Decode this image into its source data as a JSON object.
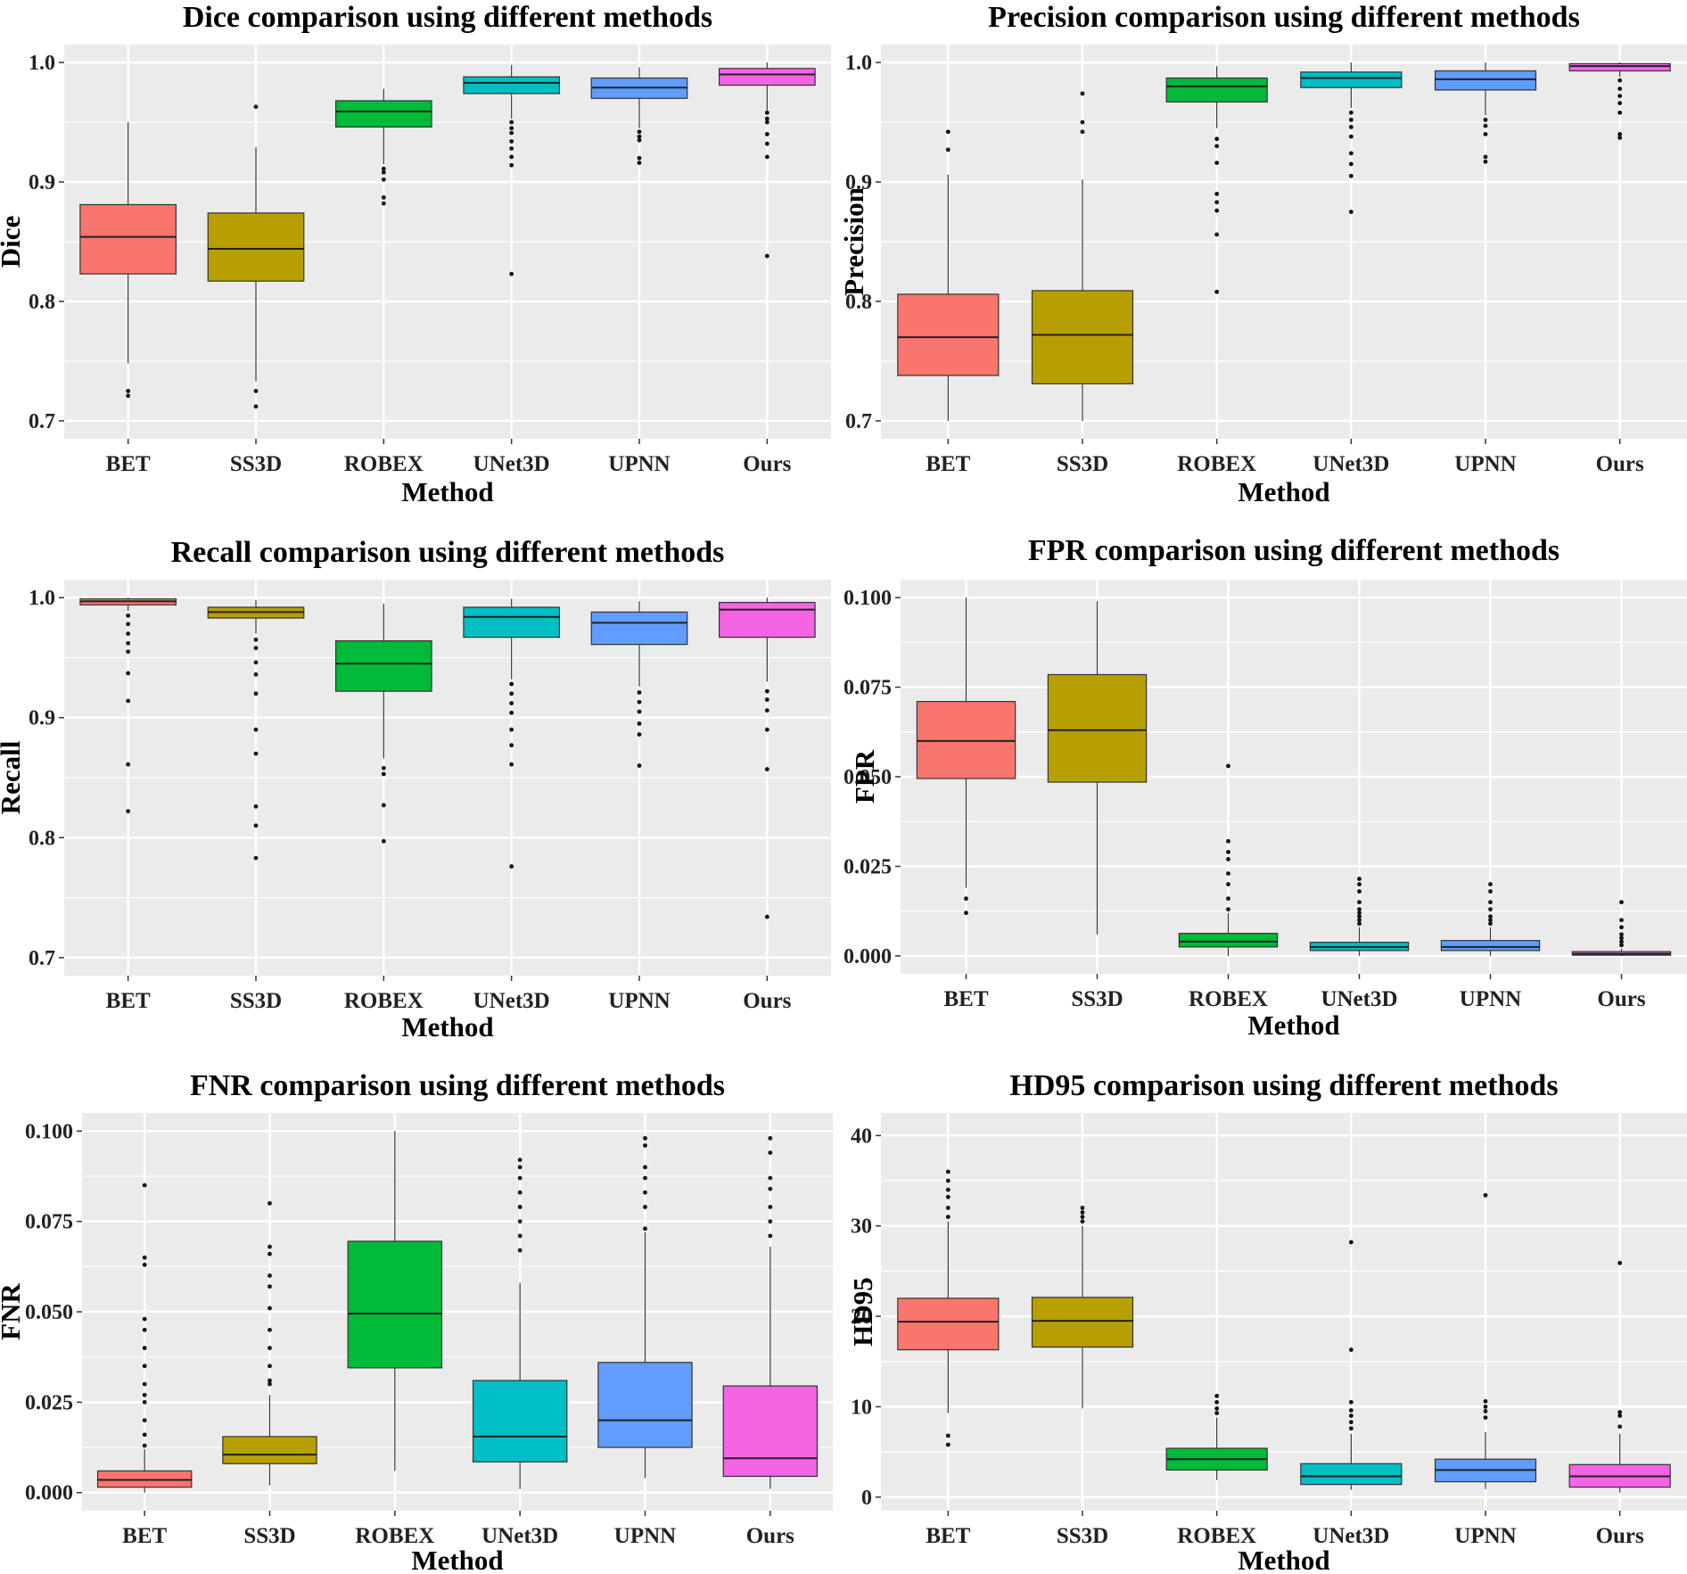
{
  "figure": {
    "methods": [
      "BET",
      "SS3D",
      "ROBEX",
      "UNet3D",
      "UPNN",
      "Ours"
    ],
    "colors": [
      "#F8766D",
      "#B79F00",
      "#00BA38",
      "#00BFC4",
      "#619CFF",
      "#F564E3"
    ],
    "panel_background": "#EBEBEB",
    "grid_color": "#FFFFFF"
  },
  "chart_data": [
    {
      "type": "box",
      "title": "Dice comparison using different methods",
      "xlabel": "Method",
      "ylabel": "Dice",
      "ylim": [
        0.685,
        1.015
      ],
      "yticks": [
        0.7,
        0.8,
        0.9,
        1.0
      ],
      "ytick_labels": [
        "0.7",
        "0.8",
        "0.9",
        "1.0"
      ],
      "categories": [
        "BET",
        "SS3D",
        "ROBEX",
        "UNet3D",
        "UPNN",
        "Ours"
      ],
      "boxes": [
        {
          "q1": 0.823,
          "median": 0.854,
          "q3": 0.881,
          "lo": 0.748,
          "hi": 0.95,
          "outliers": [
            0.725,
            0.721
          ]
        },
        {
          "q1": 0.817,
          "median": 0.844,
          "q3": 0.874,
          "lo": 0.733,
          "hi": 0.929,
          "outliers": [
            0.963,
            0.725,
            0.712
          ]
        },
        {
          "q1": 0.946,
          "median": 0.959,
          "q3": 0.968,
          "lo": 0.915,
          "hi": 0.978,
          "outliers": [
            0.911,
            0.908,
            0.902,
            0.887,
            0.882
          ]
        },
        {
          "q1": 0.974,
          "median": 0.983,
          "q3": 0.988,
          "lo": 0.953,
          "hi": 0.998,
          "outliers": [
            0.95,
            0.945,
            0.941,
            0.934,
            0.928,
            0.921,
            0.914,
            0.823
          ]
        },
        {
          "q1": 0.97,
          "median": 0.979,
          "q3": 0.987,
          "lo": 0.945,
          "hi": 0.996,
          "outliers": [
            0.942,
            0.938,
            0.935,
            0.92,
            0.916
          ]
        },
        {
          "q1": 0.981,
          "median": 0.99,
          "q3": 0.995,
          "lo": 0.96,
          "hi": 1.0,
          "outliers": [
            0.958,
            0.953,
            0.95,
            0.94,
            0.932,
            0.921,
            0.838
          ]
        }
      ]
    },
    {
      "type": "box",
      "title": "Precision comparison using different methods",
      "xlabel": "Method",
      "ylabel": "Precision",
      "ylim": [
        0.685,
        1.015
      ],
      "yticks": [
        0.7,
        0.8,
        0.9,
        1.0
      ],
      "ytick_labels": [
        "0.7",
        "0.8",
        "0.9",
        "1.0"
      ],
      "categories": [
        "BET",
        "SS3D",
        "ROBEX",
        "UNet3D",
        "UPNN",
        "Ours"
      ],
      "boxes": [
        {
          "q1": 0.738,
          "median": 0.77,
          "q3": 0.806,
          "lo": 0.7,
          "hi": 0.906,
          "outliers": [
            0.942,
            0.927
          ]
        },
        {
          "q1": 0.731,
          "median": 0.772,
          "q3": 0.809,
          "lo": 0.7,
          "hi": 0.902,
          "outliers": [
            0.974,
            0.95,
            0.942
          ]
        },
        {
          "q1": 0.967,
          "median": 0.98,
          "q3": 0.987,
          "lo": 0.945,
          "hi": 0.997,
          "outliers": [
            0.936,
            0.93,
            0.916,
            0.89,
            0.883,
            0.876,
            0.856,
            0.808
          ]
        },
        {
          "q1": 0.979,
          "median": 0.987,
          "q3": 0.992,
          "lo": 0.962,
          "hi": 1.0,
          "outliers": [
            0.958,
            0.952,
            0.946,
            0.938,
            0.924,
            0.915,
            0.905,
            0.875
          ]
        },
        {
          "q1": 0.977,
          "median": 0.986,
          "q3": 0.993,
          "lo": 0.956,
          "hi": 1.0,
          "outliers": [
            0.952,
            0.947,
            0.94,
            0.921,
            0.917
          ]
        },
        {
          "q1": 0.993,
          "median": 0.997,
          "q3": 0.999,
          "lo": 0.988,
          "hi": 1.0,
          "outliers": [
            0.985,
            0.978,
            0.972,
            0.966,
            0.958,
            0.94,
            0.937
          ]
        }
      ]
    },
    {
      "type": "box",
      "title": "Recall comparison using different methods",
      "xlabel": "Method",
      "ylabel": "Recall",
      "ylim": [
        0.685,
        1.015
      ],
      "yticks": [
        0.7,
        0.8,
        0.9,
        1.0
      ],
      "ytick_labels": [
        "0.7",
        "0.8",
        "0.9",
        "1.0"
      ],
      "categories": [
        "BET",
        "SS3D",
        "ROBEX",
        "UNet3D",
        "UPNN",
        "Ours"
      ],
      "boxes": [
        {
          "q1": 0.994,
          "median": 0.997,
          "q3": 0.999,
          "lo": 0.989,
          "hi": 1.0,
          "outliers": [
            0.985,
            0.978,
            0.97,
            0.962,
            0.955,
            0.937,
            0.914,
            0.861,
            0.822
          ]
        },
        {
          "q1": 0.983,
          "median": 0.988,
          "q3": 0.992,
          "lo": 0.97,
          "hi": 0.998,
          "outliers": [
            0.965,
            0.958,
            0.946,
            0.936,
            0.92,
            0.89,
            0.87,
            0.826,
            0.81,
            0.783
          ]
        },
        {
          "q1": 0.922,
          "median": 0.945,
          "q3": 0.964,
          "lo": 0.866,
          "hi": 0.995,
          "outliers": [
            0.858,
            0.853,
            0.827,
            0.797
          ]
        },
        {
          "q1": 0.967,
          "median": 0.984,
          "q3": 0.992,
          "lo": 0.932,
          "hi": 0.999,
          "outliers": [
            0.928,
            0.92,
            0.912,
            0.904,
            0.89,
            0.877,
            0.861,
            0.776
          ]
        },
        {
          "q1": 0.961,
          "median": 0.979,
          "q3": 0.988,
          "lo": 0.926,
          "hi": 0.997,
          "outliers": [
            0.921,
            0.913,
            0.905,
            0.895,
            0.886,
            0.86
          ]
        },
        {
          "q1": 0.967,
          "median": 0.99,
          "q3": 0.996,
          "lo": 0.93,
          "hi": 1.0,
          "outliers": [
            0.922,
            0.915,
            0.906,
            0.89,
            0.857,
            0.734
          ]
        }
      ]
    },
    {
      "type": "box",
      "title": "FPR comparison using different methods",
      "xlabel": "Method",
      "ylabel": "FPR",
      "ylim": [
        -0.005,
        0.105
      ],
      "yticks": [
        0.0,
        0.025,
        0.05,
        0.075,
        0.1
      ],
      "ytick_labels": [
        "0.000",
        "0.025",
        "0.050",
        "0.075",
        "0.100"
      ],
      "categories": [
        "BET",
        "SS3D",
        "ROBEX",
        "UNet3D",
        "UPNN",
        "Ours"
      ],
      "boxes": [
        {
          "q1": 0.0495,
          "median": 0.06,
          "q3": 0.071,
          "lo": 0.019,
          "hi": 0.1,
          "outliers": [
            0.016,
            0.012
          ]
        },
        {
          "q1": 0.0485,
          "median": 0.063,
          "q3": 0.0785,
          "lo": 0.006,
          "hi": 0.099,
          "outliers": []
        },
        {
          "q1": 0.0025,
          "median": 0.004,
          "q3": 0.0063,
          "lo": 0.0,
          "hi": 0.012,
          "outliers": [
            0.053,
            0.032,
            0.029,
            0.027,
            0.023,
            0.02,
            0.016,
            0.013
          ]
        },
        {
          "q1": 0.0015,
          "median": 0.0025,
          "q3": 0.0038,
          "lo": 0.0,
          "hi": 0.008,
          "outliers": [
            0.0215,
            0.02,
            0.018,
            0.015,
            0.013,
            0.012,
            0.011,
            0.01,
            0.009
          ]
        },
        {
          "q1": 0.0015,
          "median": 0.0025,
          "q3": 0.0043,
          "lo": 0.0,
          "hi": 0.008,
          "outliers": [
            0.02,
            0.018,
            0.015,
            0.013,
            0.011,
            0.01,
            0.009
          ]
        },
        {
          "q1": 0.0002,
          "median": 0.0006,
          "q3": 0.0012,
          "lo": 0.0,
          "hi": 0.002,
          "outliers": [
            0.015,
            0.01,
            0.008,
            0.006,
            0.005,
            0.004,
            0.003
          ]
        }
      ]
    },
    {
      "type": "box",
      "title": "FNR comparison using different methods",
      "xlabel": "Method",
      "ylabel": "FNR",
      "ylim": [
        -0.005,
        0.105
      ],
      "yticks": [
        0.0,
        0.025,
        0.05,
        0.075,
        0.1
      ],
      "ytick_labels": [
        "0.000",
        "0.025",
        "0.050",
        "0.075",
        "0.100"
      ],
      "categories": [
        "BET",
        "SS3D",
        "ROBEX",
        "UNet3D",
        "UPNN",
        "Ours"
      ],
      "boxes": [
        {
          "q1": 0.0015,
          "median": 0.0035,
          "q3": 0.006,
          "lo": 0.0,
          "hi": 0.012,
          "outliers": [
            0.085,
            0.065,
            0.063,
            0.048,
            0.045,
            0.04,
            0.035,
            0.03,
            0.027,
            0.025,
            0.02,
            0.016,
            0.013
          ]
        },
        {
          "q1": 0.008,
          "median": 0.0105,
          "q3": 0.0155,
          "lo": 0.002,
          "hi": 0.027,
          "outliers": [
            0.08,
            0.068,
            0.066,
            0.06,
            0.057,
            0.051,
            0.045,
            0.04,
            0.035,
            0.031,
            0.03
          ]
        },
        {
          "q1": 0.0345,
          "median": 0.0495,
          "q3": 0.0695,
          "lo": 0.006,
          "hi": 0.1,
          "outliers": []
        },
        {
          "q1": 0.0085,
          "median": 0.0155,
          "q3": 0.031,
          "lo": 0.001,
          "hi": 0.058,
          "outliers": [
            0.092,
            0.09,
            0.087,
            0.083,
            0.079,
            0.075,
            0.071,
            0.067
          ]
        },
        {
          "q1": 0.0125,
          "median": 0.02,
          "q3": 0.036,
          "lo": 0.004,
          "hi": 0.072,
          "outliers": [
            0.098,
            0.096,
            0.09,
            0.087,
            0.083,
            0.079,
            0.073
          ]
        },
        {
          "q1": 0.0045,
          "median": 0.0095,
          "q3": 0.0295,
          "lo": 0.001,
          "hi": 0.068,
          "outliers": [
            0.098,
            0.094,
            0.087,
            0.084,
            0.079,
            0.075,
            0.071
          ]
        }
      ]
    },
    {
      "type": "box",
      "title": "HD95 comparison using different methods",
      "xlabel": "Method",
      "ylabel": "HD95",
      "ylim": [
        -1.5,
        42.5
      ],
      "yticks": [
        0,
        10,
        20,
        30,
        40
      ],
      "ytick_labels": [
        "0",
        "10",
        "20",
        "30",
        "40"
      ],
      "categories": [
        "BET",
        "SS3D",
        "ROBEX",
        "UNet3D",
        "UPNN",
        "Ours"
      ],
      "boxes": [
        {
          "q1": 16.3,
          "median": 19.4,
          "q3": 22.0,
          "lo": 9.3,
          "hi": 30.5,
          "outliers": [
            36.0,
            35.0,
            34.0,
            33.2,
            32.0,
            31.0,
            6.8,
            5.8
          ]
        },
        {
          "q1": 16.6,
          "median": 19.5,
          "q3": 22.1,
          "lo": 9.8,
          "hi": 30.0,
          "outliers": [
            32.0,
            31.5,
            31.0,
            30.5
          ]
        },
        {
          "q1": 3.0,
          "median": 4.2,
          "q3": 5.4,
          "lo": 1.9,
          "hi": 8.8,
          "outliers": [
            11.2,
            10.5,
            9.8,
            9.3
          ]
        },
        {
          "q1": 1.4,
          "median": 2.3,
          "q3": 3.7,
          "lo": 0.8,
          "hi": 7.0,
          "outliers": [
            28.2,
            16.3,
            10.5,
            9.6,
            9.0,
            8.3,
            7.6
          ]
        },
        {
          "q1": 1.7,
          "median": 3.0,
          "q3": 4.2,
          "lo": 0.9,
          "hi": 7.2,
          "outliers": [
            33.4,
            10.6,
            10.0,
            9.5,
            8.8
          ]
        },
        {
          "q1": 1.1,
          "median": 2.3,
          "q3": 3.6,
          "lo": 0.5,
          "hi": 7.0,
          "outliers": [
            25.9,
            9.4,
            9.0,
            7.8
          ]
        }
      ]
    }
  ]
}
